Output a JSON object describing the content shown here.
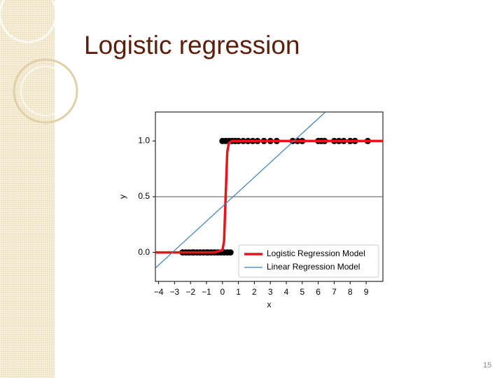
{
  "slide": {
    "title": "Logistic regression",
    "page_number": "15"
  },
  "chart_data": {
    "type": "line",
    "x_label": "x",
    "y_label": "y",
    "xlim": [
      -4.2,
      10.05
    ],
    "ylim": [
      -0.26,
      1.26
    ],
    "xticks": [
      {
        "value": -4,
        "label": "−4"
      },
      {
        "value": -3,
        "label": "−3"
      },
      {
        "value": -2,
        "label": "−2"
      },
      {
        "value": -1,
        "label": "−1"
      },
      0,
      1,
      2,
      3,
      4,
      5,
      6,
      7,
      8,
      9
    ],
    "yticks": [
      {
        "value": 0,
        "label": "0.0"
      },
      {
        "value": 0.5,
        "label": "0.5"
      },
      {
        "value": 1,
        "label": "1.0"
      }
    ],
    "hline": 0.5,
    "legend": "lower right",
    "series": [
      {
        "type": "scatter",
        "color": "#000000",
        "x": [
          -2.5,
          -2.3,
          -2.1,
          -1.9,
          -1.8,
          -1.6,
          -1.4,
          -1.2,
          -1.0,
          -0.9,
          -0.7,
          -0.5,
          -0.3,
          -0.1,
          0.1,
          0.3,
          0.5,
          0,
          0.2,
          0.4,
          0.6,
          0.8,
          1.0,
          1.3,
          1.6,
          1.9,
          2.2,
          2.6,
          3.0,
          3.4,
          4.4,
          4.7,
          5.0,
          6.0,
          6.2,
          6.4,
          7.0,
          7.3,
          7.6,
          8.0,
          8.3,
          9.1
        ],
        "values": [
          0,
          0,
          0,
          0,
          0,
          0,
          0,
          0,
          0,
          0,
          0,
          0,
          0,
          0,
          0,
          0,
          0,
          1,
          1,
          1,
          1,
          1,
          1,
          1,
          1,
          1,
          1,
          1,
          1,
          1,
          1,
          1,
          1,
          1,
          1,
          1,
          1,
          1,
          1,
          1,
          1,
          1
        ]
      },
      {
        "name": "Logistic Regression Model",
        "type": "line",
        "color": "#e8141c",
        "width": 3.5,
        "x": [
          -4.2,
          -0.5,
          0,
          0.1,
          0.2,
          0.3,
          0.4,
          0.6,
          10.05
        ],
        "values": [
          0,
          0,
          0.02,
          0.1,
          0.5,
          0.9,
          0.98,
          1,
          1
        ]
      },
      {
        "name": "Linear Regression Model",
        "type": "line",
        "color": "#3a7fc0",
        "width": 1.2,
        "x": [
          -4.2,
          6.45
        ],
        "values": [
          -0.14,
          1.26
        ]
      }
    ]
  }
}
